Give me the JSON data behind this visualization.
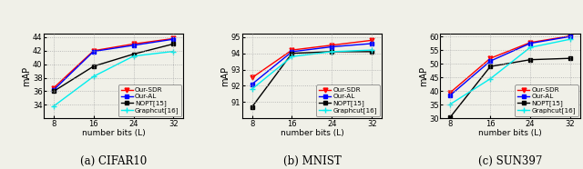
{
  "x": [
    8,
    16,
    24,
    32
  ],
  "cifar10": {
    "sdr": [
      36.5,
      42.0,
      43.0,
      43.8
    ],
    "al": [
      36.2,
      41.9,
      42.8,
      43.7
    ],
    "nopt": [
      36.0,
      39.7,
      41.5,
      43.0
    ],
    "graphcut": [
      33.8,
      38.2,
      41.2,
      41.9
    ],
    "ylim": [
      32,
      44.5
    ],
    "yticks": [
      34,
      36,
      38,
      40,
      42,
      44
    ],
    "title": "(a) CIFAR10"
  },
  "mnist": {
    "sdr": [
      92.5,
      94.2,
      94.5,
      94.8
    ],
    "al": [
      92.1,
      94.1,
      94.4,
      94.6
    ],
    "nopt": [
      90.7,
      94.0,
      94.1,
      94.1
    ],
    "graphcut": [
      91.8,
      93.8,
      94.1,
      94.2
    ],
    "ylim": [
      90,
      95.2
    ],
    "yticks": [
      91,
      92,
      93,
      94,
      95
    ],
    "title": "(b) MNIST"
  },
  "sun397": {
    "sdr": [
      39.5,
      52.0,
      57.8,
      60.2
    ],
    "al": [
      38.5,
      51.0,
      57.5,
      60.0
    ],
    "nopt": [
      30.5,
      49.0,
      51.5,
      52.0
    ],
    "graphcut": [
      35.2,
      44.5,
      56.0,
      59.0
    ],
    "ylim": [
      30,
      61
    ],
    "yticks": [
      30,
      35,
      40,
      45,
      50,
      55,
      60
    ],
    "title": "(c) SUN397"
  },
  "colors": {
    "sdr": "#ff0000",
    "al": "#0000ff",
    "nopt": "#000000",
    "graphcut": "#00eeee"
  },
  "legend_labels": [
    "Our-SDR",
    "Our-AL",
    "NOPT[15]",
    "Graphcut[16]"
  ],
  "xlabel": "number bits (L)",
  "ylabel": "mAP",
  "xticks": [
    8,
    16,
    24,
    32
  ],
  "bg_color": "#f0f0e8",
  "fig_bg": "#f0f0e8"
}
